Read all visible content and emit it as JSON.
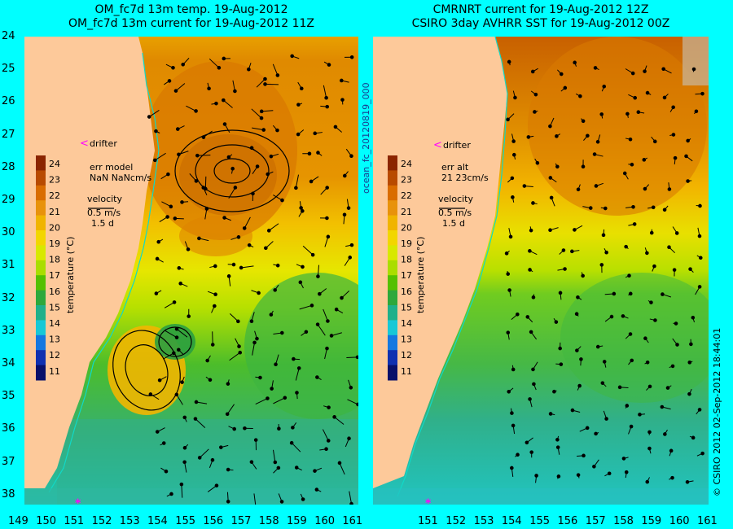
{
  "left_panel": {
    "title_line1": "OM_fc7d 13m temp. 19-Aug-2012",
    "title_line2": "OM_fc7d 13m current for 19-Aug-2012 11Z",
    "drifter_label": "drifter",
    "err_label": "err model",
    "err_value": "NaN NaNcm/s",
    "velocity_label": "velocity",
    "velocity_scale": "0.5 m/s",
    "velocity_time": "1.5 d",
    "colorbar_title": "temperature (°C)"
  },
  "right_panel": {
    "title_line1": "CMRNRT current for 19-Aug-2012 12Z",
    "title_line2": "CSIRO 3day AVHRR SST for 19-Aug-2012 00Z",
    "drifter_label": "drifter",
    "err_label": "err alt",
    "err_value": "21 23cm/s",
    "velocity_label": "velocity",
    "velocity_scale": "0.5 m/s",
    "velocity_time": "1.5 d",
    "colorbar_title": "temperature (°C)"
  },
  "side_label_left": "ocean_fc_20120819_000",
  "side_label_right": "© CSIRO 2012   02-Sep-2012 18:44:01",
  "y_ticks": [
    "24",
    "25",
    "26",
    "27",
    "28",
    "29",
    "30",
    "31",
    "32",
    "33",
    "34",
    "35",
    "36",
    "37",
    "38"
  ],
  "x_ticks_left": [
    "149",
    "150",
    "151",
    "152",
    "153",
    "154",
    "155",
    "156",
    "157",
    "158",
    "159",
    "160",
    "161"
  ],
  "x_ticks_right": [
    "151",
    "152",
    "153",
    "154",
    "155",
    "156",
    "157",
    "158",
    "159",
    "160",
    "161"
  ],
  "colorbar_ticks": [
    "24",
    "23",
    "22",
    "21",
    "20",
    "19",
    "18",
    "17",
    "16",
    "15",
    "14",
    "13",
    "12",
    "11"
  ],
  "colorbar_colors": [
    "#8b2500",
    "#b84a00",
    "#d96c00",
    "#e8920b",
    "#f0b400",
    "#f2d600",
    "#d8e800",
    "#aadd00",
    "#55c000",
    "#2ea83c",
    "#20b08a",
    "#18c8d6",
    "#1478e0",
    "#1030b0",
    "#08106a"
  ],
  "colors": {
    "land": "#fdc99a",
    "frame_bg": "#00ffff",
    "coastline": "#11d9c8",
    "drifter": "#ff00ff"
  }
}
